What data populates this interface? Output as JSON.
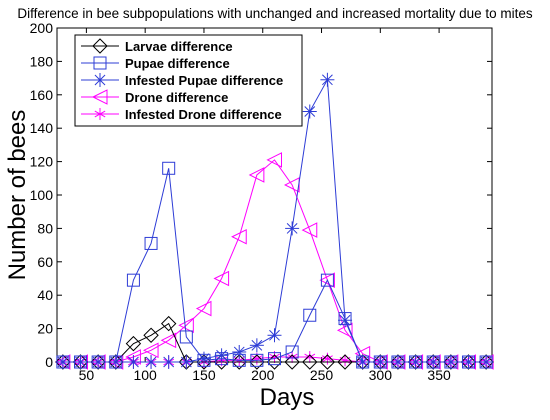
{
  "chart_data": {
    "type": "line",
    "title": "Difference in bee subpopulations with unchanged and increased mortality due to mites",
    "xlabel": "Days",
    "ylabel": "Number of bees",
    "xlim": [
      25,
      395
    ],
    "ylim": [
      0,
      200
    ],
    "xticks": [
      50,
      100,
      150,
      200,
      250,
      300,
      350
    ],
    "yticks": [
      0,
      20,
      40,
      60,
      80,
      100,
      120,
      140,
      160,
      180,
      200
    ],
    "grid": false,
    "legend_position": "top-left",
    "series": [
      {
        "name": "Larvae difference",
        "color": "#000000",
        "marker": "diamond",
        "x": [
          30,
          45,
          60,
          75,
          90,
          105,
          120,
          135,
          150,
          165,
          180,
          195,
          210,
          225,
          240,
          255,
          270,
          285,
          300,
          315,
          330,
          345,
          360,
          375,
          390
        ],
        "y": [
          0,
          0,
          0,
          0,
          11,
          16,
          23,
          0,
          0,
          0,
          0,
          0,
          0,
          0,
          0,
          0,
          0,
          0,
          0,
          0,
          0,
          0,
          0,
          0,
          0
        ]
      },
      {
        "name": "Pupae difference",
        "color": "#2d3cd6",
        "marker": "square",
        "x": [
          30,
          45,
          60,
          75,
          90,
          105,
          120,
          135,
          150,
          165,
          180,
          195,
          210,
          225,
          240,
          255,
          270,
          285,
          300,
          315,
          330,
          345,
          360,
          375,
          390
        ],
        "y": [
          0,
          0,
          0,
          0,
          49,
          71,
          116,
          15,
          1,
          2,
          1,
          1,
          2,
          6,
          28,
          49,
          26,
          0,
          0,
          0,
          0,
          0,
          0,
          0,
          0
        ]
      },
      {
        "name": "Infested Pupae difference",
        "color": "#2d3cd6",
        "marker": "star",
        "x": [
          30,
          45,
          60,
          75,
          90,
          105,
          120,
          135,
          150,
          165,
          180,
          195,
          210,
          225,
          240,
          255,
          270,
          285,
          300,
          315,
          330,
          345,
          360,
          375,
          390
        ],
        "y": [
          0,
          0,
          0,
          0,
          0,
          0,
          0,
          0,
          2,
          4,
          6,
          10,
          16,
          80,
          150,
          169,
          25,
          0,
          0,
          0,
          0,
          0,
          0,
          0,
          0
        ]
      },
      {
        "name": "Drone difference",
        "color": "#ff00ff",
        "marker": "triangle-left",
        "x": [
          30,
          45,
          60,
          75,
          90,
          105,
          120,
          135,
          150,
          165,
          180,
          195,
          210,
          225,
          240,
          255,
          270,
          285,
          300,
          315,
          330,
          345,
          360,
          375,
          390
        ],
        "y": [
          0,
          0,
          0,
          0,
          3,
          7,
          13,
          22,
          32,
          50,
          75,
          112,
          121,
          106,
          79,
          49,
          19,
          5,
          0,
          0,
          0,
          0,
          0,
          0,
          0
        ]
      },
      {
        "name": "Infested Drone difference",
        "color": "#ff00ff",
        "marker": "asterisk",
        "x": [
          30,
          45,
          60,
          75,
          90,
          105,
          120,
          135,
          150,
          165,
          180,
          195,
          210,
          225,
          240,
          255,
          270,
          285,
          300,
          315,
          330,
          345,
          360,
          375,
          390
        ],
        "y": [
          0,
          0,
          0,
          0,
          0,
          0,
          0,
          0,
          0,
          1,
          1,
          2,
          3,
          3,
          3,
          2,
          1,
          0,
          0,
          0,
          0,
          0,
          0,
          0,
          0
        ]
      }
    ]
  }
}
